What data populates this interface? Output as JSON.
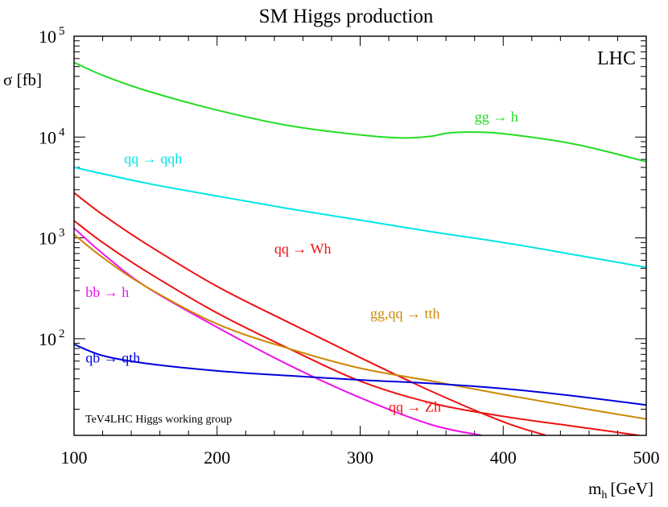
{
  "chart_data": {
    "type": "line",
    "title": "SM Higgs production",
    "xlabel_main": "m",
    "xlabel_sub": "h",
    "xlabel_unit": "[GeV]",
    "ylabel": "σ [fb]",
    "xlim": [
      100,
      500
    ],
    "ylim": [
      11,
      100000
    ],
    "yscale": "log",
    "x_ticks": [
      {
        "value": 100,
        "label": "100"
      },
      {
        "value": 200,
        "label": "200"
      },
      {
        "value": 300,
        "label": "300"
      },
      {
        "value": 400,
        "label": "400"
      },
      {
        "value": 500,
        "label": "500"
      }
    ],
    "y_ticks": [
      {
        "value": 100,
        "base": "10",
        "exp": "2"
      },
      {
        "value": 1000,
        "base": "10",
        "exp": "3"
      },
      {
        "value": 10000,
        "base": "10",
        "exp": "4"
      },
      {
        "value": 100000,
        "base": "10",
        "exp": "5"
      }
    ],
    "annotations": [
      {
        "text": "LHC",
        "role": "collider"
      },
      {
        "text": "TeV4LHC Higgs working group",
        "role": "credit"
      }
    ],
    "series": [
      {
        "name": "gg → h",
        "color": "#22dd22",
        "label_at": [
          380,
          14200
        ],
        "x": [
          100,
          120,
          150,
          200,
          250,
          300,
          330,
          350,
          360,
          375,
          400,
          450,
          500
        ],
        "y": [
          55000,
          41000,
          29000,
          18500,
          13000,
          10500,
          9800,
          10200,
          10900,
          11200,
          10800,
          8500,
          5700
        ]
      },
      {
        "name": "qq → qqh",
        "color": "#00e5e5",
        "label_at": [
          135,
          5500
        ],
        "x": [
          100,
          150,
          200,
          250,
          300,
          350,
          400,
          450,
          500
        ],
        "y": [
          5000,
          3500,
          2600,
          1950,
          1500,
          1150,
          900,
          680,
          510
        ]
      },
      {
        "name": "qq → Wh",
        "color": "#ee1111",
        "label_at": [
          240,
          700
        ],
        "x": [
          100,
          120,
          150,
          200,
          250,
          300,
          350,
          400,
          430
        ],
        "y": [
          2800,
          1700,
          880,
          330,
          145,
          65,
          30,
          15,
          11
        ]
      },
      {
        "name": "qq → Zh",
        "color": "#ee1111",
        "label_at": [
          320,
          19
        ],
        "x": [
          100,
          120,
          150,
          200,
          250,
          300,
          350,
          400,
          450,
          495
        ],
        "y": [
          1480,
          900,
          470,
          180,
          80,
          38,
          23,
          17,
          13.5,
          11
        ]
      },
      {
        "name": "bb → h",
        "color": "#ee11ee",
        "label_at": [
          108,
          260
        ],
        "x": [
          100,
          120,
          150,
          200,
          250,
          300,
          350,
          385
        ],
        "y": [
          1250,
          700,
          330,
          130,
          55,
          26,
          14,
          11
        ]
      },
      {
        "name": "gg,qq → tth",
        "color": "#cc8800",
        "label_at": [
          307,
          160
        ],
        "x": [
          100,
          120,
          150,
          200,
          250,
          300,
          350,
          400,
          450,
          500
        ],
        "y": [
          1080,
          640,
          330,
          140,
          80,
          51,
          38,
          28,
          21,
          16
        ]
      },
      {
        "name": "qb → qth",
        "color": "#0000dd",
        "label_at": [
          108,
          58
        ],
        "x": [
          100,
          120,
          150,
          200,
          250,
          300,
          350,
          400,
          450,
          500
        ],
        "y": [
          88,
          68,
          57,
          48,
          43,
          39,
          36,
          32,
          27,
          22
        ]
      }
    ]
  }
}
